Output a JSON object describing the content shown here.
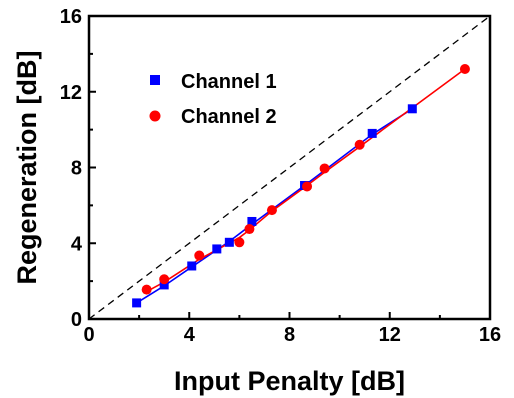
{
  "chart_data": {
    "type": "scatter",
    "title": "",
    "xlabel": "Input Penalty [dB]",
    "ylabel": "Regeneration [dB]",
    "xlim": [
      0,
      16
    ],
    "ylim": [
      0,
      16
    ],
    "xticks": [
      "0",
      "4",
      "8",
      "12",
      "16"
    ],
    "yticks": [
      "0",
      "4",
      "8",
      "12",
      "16"
    ],
    "reference_line": "y = x (dashed)",
    "legend_position": "upper-left",
    "series": [
      {
        "name": "Channel 1",
        "marker": "square",
        "color": "#0000ff",
        "points": [
          [
            1.9,
            0.85
          ],
          [
            3.0,
            1.8
          ],
          [
            4.1,
            2.8
          ],
          [
            5.1,
            3.7
          ],
          [
            5.6,
            4.05
          ],
          [
            6.5,
            5.15
          ],
          [
            8.6,
            7.05
          ],
          [
            11.3,
            9.8
          ],
          [
            12.9,
            11.1
          ]
        ],
        "fit": [
          [
            1.9,
            0.85
          ],
          [
            3.0,
            1.75
          ],
          [
            4.1,
            2.75
          ],
          [
            5.1,
            3.65
          ],
          [
            5.6,
            4.1
          ],
          [
            6.5,
            5.0
          ],
          [
            8.6,
            7.05
          ],
          [
            11.3,
            9.75
          ],
          [
            12.9,
            11.1
          ]
        ]
      },
      {
        "name": "Channel 2",
        "marker": "circle",
        "color": "#ff0000",
        "points": [
          [
            2.3,
            1.55
          ],
          [
            3.0,
            2.1
          ],
          [
            4.4,
            3.35
          ],
          [
            6.0,
            4.05
          ],
          [
            6.4,
            4.75
          ],
          [
            7.3,
            5.75
          ],
          [
            8.7,
            7.0
          ],
          [
            9.4,
            7.95
          ],
          [
            10.8,
            9.2
          ],
          [
            15.0,
            13.2
          ]
        ],
        "fit": [
          [
            2.3,
            1.45
          ],
          [
            3.0,
            1.95
          ],
          [
            4.4,
            3.15
          ],
          [
            6.0,
            4.3
          ],
          [
            6.4,
            4.7
          ],
          [
            7.3,
            5.7
          ],
          [
            8.7,
            7.05
          ],
          [
            9.4,
            7.75
          ],
          [
            10.8,
            9.1
          ],
          [
            15.0,
            13.2
          ]
        ]
      }
    ]
  }
}
